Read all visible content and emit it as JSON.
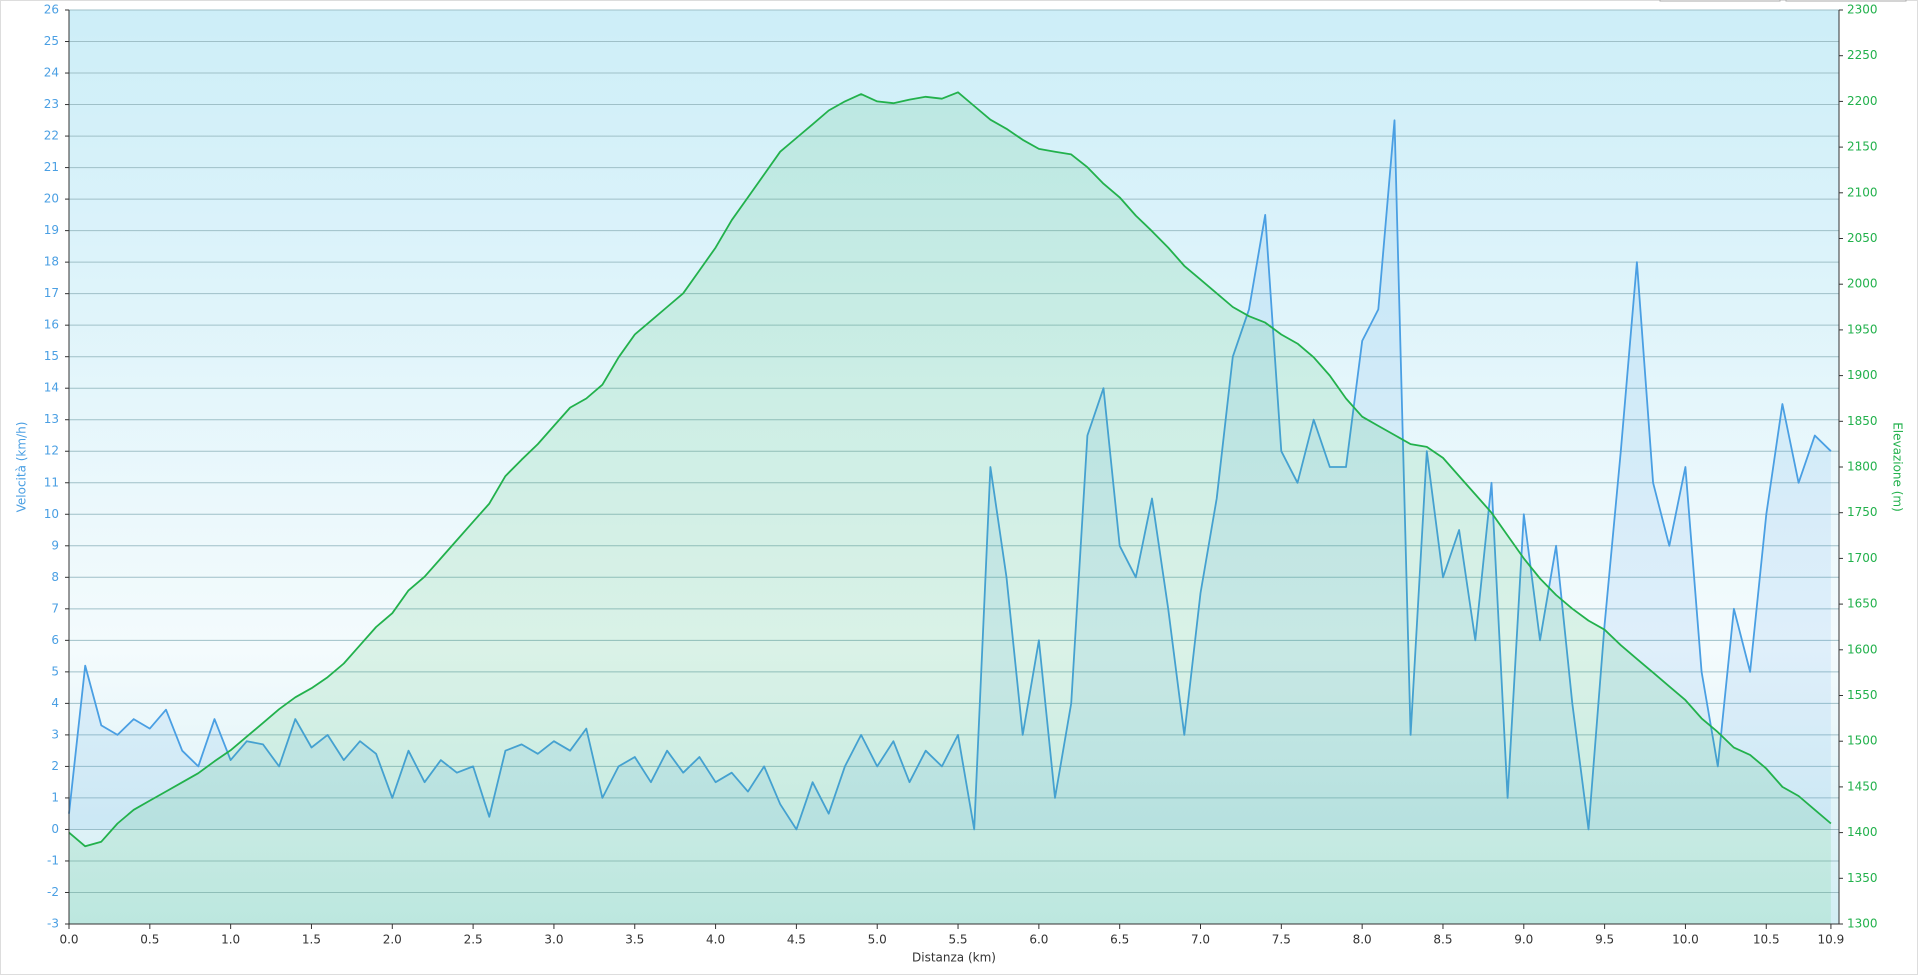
{
  "chart_data": {
    "type": "line",
    "xlabel": "Distanza  (km)",
    "ylabel": "Velocità (km/h)",
    "y2label": "Elevazione (m)",
    "x": [
      0.0,
      0.1,
      0.2,
      0.3,
      0.4,
      0.5,
      0.6,
      0.7,
      0.8,
      0.9,
      1.0,
      1.1,
      1.2,
      1.3,
      1.4,
      1.5,
      1.6,
      1.7,
      1.8,
      1.9,
      2.0,
      2.1,
      2.2,
      2.3,
      2.4,
      2.5,
      2.6,
      2.7,
      2.8,
      2.9,
      3.0,
      3.1,
      3.2,
      3.3,
      3.4,
      3.5,
      3.6,
      3.7,
      3.8,
      3.9,
      4.0,
      4.1,
      4.2,
      4.3,
      4.4,
      4.5,
      4.6,
      4.7,
      4.8,
      4.9,
      5.0,
      5.1,
      5.2,
      5.3,
      5.4,
      5.5,
      5.6,
      5.7,
      5.8,
      5.9,
      6.0,
      6.1,
      6.2,
      6.3,
      6.4,
      6.5,
      6.6,
      6.7,
      6.8,
      6.9,
      7.0,
      7.1,
      7.2,
      7.3,
      7.4,
      7.5,
      7.6,
      7.7,
      7.8,
      7.9,
      8.0,
      8.1,
      8.2,
      8.3,
      8.4,
      8.5,
      8.6,
      8.7,
      8.8,
      8.9,
      9.0,
      9.1,
      9.2,
      9.3,
      9.4,
      9.5,
      9.6,
      9.7,
      9.8,
      9.9,
      10.0,
      10.1,
      10.2,
      10.3,
      10.4,
      10.5,
      10.6,
      10.7,
      10.8,
      10.9
    ],
    "series": [
      {
        "name": "Velocità",
        "color": "#4a9fe3",
        "values": [
          0.5,
          5.2,
          3.3,
          3.0,
          3.5,
          3.2,
          3.8,
          2.5,
          2.0,
          3.5,
          2.2,
          2.8,
          2.7,
          2.0,
          3.5,
          2.6,
          3.0,
          2.2,
          2.8,
          2.4,
          1.0,
          2.5,
          1.5,
          2.2,
          1.8,
          2.0,
          0.4,
          2.5,
          2.7,
          2.4,
          2.8,
          2.5,
          3.2,
          1.0,
          2.0,
          2.3,
          1.5,
          2.5,
          1.8,
          2.3,
          1.5,
          1.8,
          1.2,
          2.0,
          0.8,
          0.0,
          1.5,
          0.5,
          2.0,
          3.0,
          2.0,
          2.8,
          1.5,
          2.5,
          2.0,
          3.0,
          0.0,
          11.5,
          8.0,
          3.0,
          6.0,
          1.0,
          4.0,
          12.5,
          14.0,
          9.0,
          8.0,
          10.5,
          7.0,
          3.0,
          7.5,
          10.5,
          15.0,
          16.5,
          19.5,
          12.0,
          11.0,
          13.0,
          11.5,
          11.5,
          15.5,
          16.5,
          22.5,
          3.0,
          12.0,
          8.0,
          9.5,
          6.0,
          11.0,
          1.0,
          10.0,
          6.0,
          9.0,
          4.0,
          0.0,
          6.5,
          12.0,
          18.0,
          11.0,
          9.0,
          11.5,
          5.0,
          2.0,
          7.0,
          5.0,
          10.0,
          13.5,
          11.0,
          12.5,
          12.0
        ]
      },
      {
        "name": "Elevazione",
        "color": "#22b14c",
        "axis": "y2",
        "values": [
          1400,
          1385,
          1390,
          1410,
          1425,
          1435,
          1445,
          1455,
          1465,
          1478,
          1490,
          1505,
          1520,
          1535,
          1548,
          1558,
          1570,
          1585,
          1605,
          1625,
          1640,
          1665,
          1680,
          1700,
          1720,
          1740,
          1760,
          1790,
          1808,
          1825,
          1845,
          1865,
          1875,
          1890,
          1920,
          1945,
          1960,
          1975,
          1990,
          2015,
          2040,
          2070,
          2095,
          2120,
          2145,
          2160,
          2175,
          2190,
          2200,
          2208,
          2200,
          2198,
          2202,
          2205,
          2203,
          2210,
          2195,
          2180,
          2170,
          2158,
          2148,
          2145,
          2142,
          2128,
          2110,
          2095,
          2075,
          2058,
          2040,
          2020,
          2005,
          1990,
          1975,
          1965,
          1958,
          1945,
          1935,
          1920,
          1900,
          1875,
          1855,
          1845,
          1835,
          1825,
          1822,
          1810,
          1790,
          1770,
          1750,
          1725,
          1700,
          1678,
          1660,
          1645,
          1632,
          1622,
          1605,
          1590,
          1575,
          1560,
          1545,
          1525,
          1510,
          1493,
          1485,
          1470,
          1450,
          1440,
          1425,
          1410
        ]
      }
    ],
    "xlim": [
      0,
      10.95
    ],
    "xticks": [
      {
        "value": 0,
        "label": "0.0"
      },
      0.5,
      {
        "value": 1,
        "label": "1.0"
      },
      1.5,
      {
        "value": 2,
        "label": "2.0"
      },
      2.5,
      {
        "value": 3,
        "label": "3.0"
      },
      3.5,
      {
        "value": 4,
        "label": "4.0"
      },
      4.5,
      {
        "value": 5,
        "label": "5.0"
      },
      5.5,
      {
        "value": 6,
        "label": "6.0"
      },
      6.5,
      {
        "value": 7,
        "label": "7.0"
      },
      7.5,
      {
        "value": 8,
        "label": "8.0"
      },
      8.5,
      {
        "value": 9,
        "label": "9.0"
      },
      9.5,
      {
        "value": 10,
        "label": "10.0"
      },
      10.5,
      10.9
    ],
    "ylim": [
      -3,
      26
    ],
    "yticks": [
      -3,
      -2,
      -1,
      0,
      1,
      2,
      3,
      4,
      5,
      6,
      7,
      8,
      9,
      10,
      11,
      12,
      13,
      14,
      15,
      16,
      17,
      18,
      19,
      20,
      21,
      22,
      23,
      24,
      25,
      26
    ],
    "y2lim": [
      1300,
      2300
    ],
    "y2ticks": [
      1300,
      1350,
      1400,
      1450,
      1500,
      1550,
      1600,
      1650,
      1700,
      1750,
      1800,
      1850,
      1900,
      1950,
      2000,
      2050,
      2100,
      2150,
      2200,
      2250,
      2300
    ],
    "grid": true
  }
}
